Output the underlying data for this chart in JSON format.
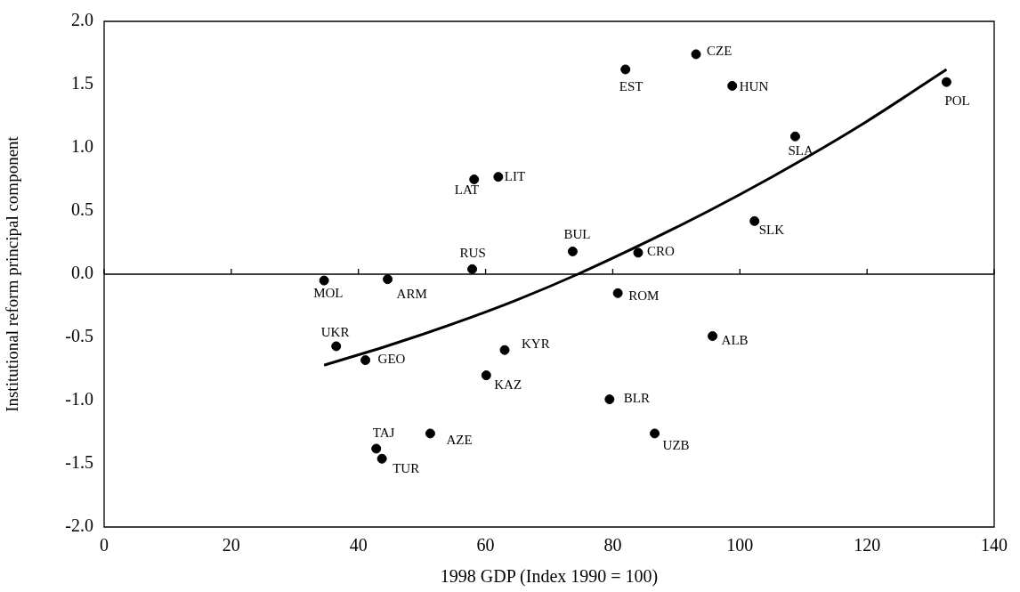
{
  "chart_data": {
    "type": "scatter",
    "xlabel": "1998 GDP (Index 1990 = 100)",
    "ylabel": "Institutional reform principal component",
    "xlim": [
      0,
      140
    ],
    "xticks": [
      0,
      20,
      40,
      60,
      80,
      100,
      120,
      140
    ],
    "ylim": [
      -2,
      2
    ],
    "yticks": [
      {
        "value": -2,
        "label": "-2.0"
      },
      {
        "value": -1.5,
        "label": "-1.5"
      },
      {
        "value": -1,
        "label": "-1.0"
      },
      {
        "value": -0.5,
        "label": "-0.5"
      },
      {
        "value": 0,
        "label": "0.0"
      },
      {
        "value": 0.5,
        "label": "0.5"
      },
      {
        "value": 1,
        "label": "1.0"
      },
      {
        "value": 1.5,
        "label": "1.5"
      },
      {
        "value": 2,
        "label": "2.0"
      }
    ],
    "grid": false,
    "marker": "circle",
    "ref_lines": [
      {
        "axis": "y",
        "value": 0,
        "color": "#000000"
      }
    ],
    "series": [
      {
        "type": "scatter",
        "color": "#000000",
        "x": [
          34.6,
          44.6,
          57.9,
          58.2,
          62.0,
          82.0,
          93.1,
          98.8,
          132.5,
          108.7,
          102.3,
          73.7,
          84.0,
          80.8,
          36.5,
          41.1,
          60.1,
          63.0,
          42.8,
          43.7,
          51.3,
          95.7,
          79.5,
          86.6
        ],
        "values": [
          -0.05,
          -0.04,
          0.04,
          0.75,
          0.77,
          1.62,
          1.74,
          1.49,
          1.52,
          1.09,
          0.42,
          0.18,
          0.17,
          -0.15,
          -0.57,
          -0.68,
          -0.8,
          -0.6,
          -1.38,
          -1.46,
          -1.26,
          -0.49,
          -0.99,
          -1.26
        ]
      },
      {
        "type": "line",
        "color": "#000000",
        "line_style": "solid",
        "marker": "none",
        "x": [
          34.6,
          45,
          55,
          64.6,
          74.5,
          90,
          100,
          110,
          120,
          132.5
        ],
        "values": [
          -0.72,
          -0.56,
          -0.39,
          -0.21,
          0.0,
          0.37,
          0.63,
          0.91,
          1.21,
          1.62
        ]
      }
    ],
    "annotations": [
      {
        "text": "MOL",
        "x": 34.6,
        "y": -0.05
      },
      {
        "text": "ARM",
        "x": 44.6,
        "y": -0.04
      },
      {
        "text": "RUS",
        "x": 57.9,
        "y": 0.04
      },
      {
        "text": "LAT",
        "x": 58.2,
        "y": 0.75
      },
      {
        "text": "LIT",
        "x": 62.0,
        "y": 0.77
      },
      {
        "text": "EST",
        "x": 82.0,
        "y": 1.62
      },
      {
        "text": "CZE",
        "x": 93.1,
        "y": 1.74
      },
      {
        "text": "HUN",
        "x": 98.8,
        "y": 1.49
      },
      {
        "text": "POL",
        "x": 132.5,
        "y": 1.52
      },
      {
        "text": "SLA",
        "x": 108.7,
        "y": 1.09
      },
      {
        "text": "SLK",
        "x": 102.3,
        "y": 0.42
      },
      {
        "text": "BUL",
        "x": 73.7,
        "y": 0.18
      },
      {
        "text": "CRO",
        "x": 84.0,
        "y": 0.17
      },
      {
        "text": "ROM",
        "x": 80.8,
        "y": -0.15
      },
      {
        "text": "UKR",
        "x": 36.5,
        "y": -0.57
      },
      {
        "text": "GEO",
        "x": 41.1,
        "y": -0.68
      },
      {
        "text": "KAZ",
        "x": 60.1,
        "y": -0.8
      },
      {
        "text": "KYR",
        "x": 63.0,
        "y": -0.6
      },
      {
        "text": "TAJ",
        "x": 42.8,
        "y": -1.38
      },
      {
        "text": "TUR",
        "x": 43.7,
        "y": -1.46
      },
      {
        "text": "AZE",
        "x": 51.3,
        "y": -1.26
      },
      {
        "text": "ALB",
        "x": 95.7,
        "y": -0.49
      },
      {
        "text": "BLR",
        "x": 79.5,
        "y": -0.99
      },
      {
        "text": "UZB",
        "x": 86.6,
        "y": -1.26
      }
    ]
  }
}
